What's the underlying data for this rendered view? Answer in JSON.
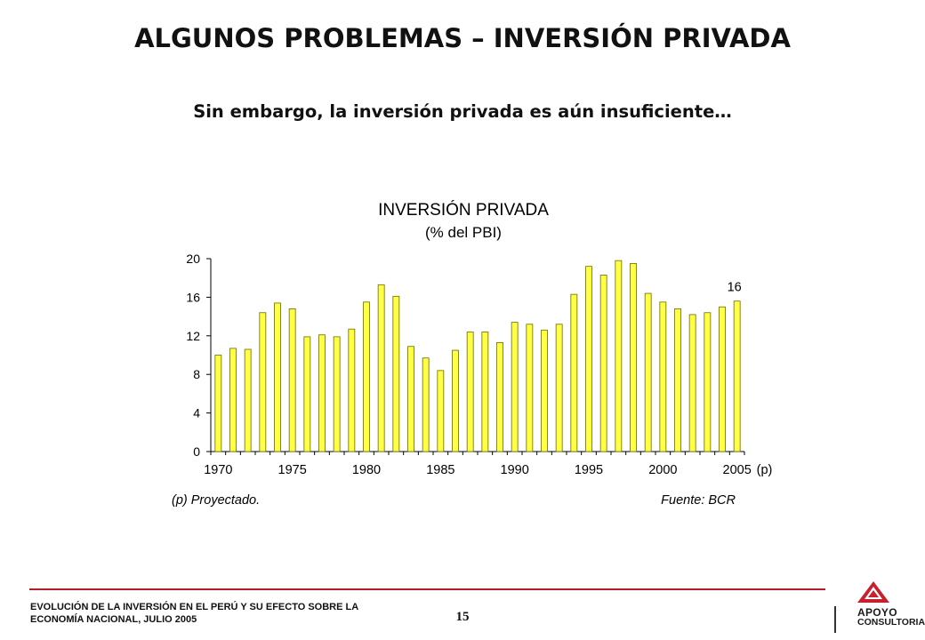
{
  "header": {
    "title": "ALGUNOS PROBLEMAS – INVERSIÓN PRIVADA",
    "subtitle": "Sin embargo, la inversión privada es aún insuficiente…"
  },
  "footer": {
    "line1": "EVOLUCIÓN DE LA INVERSIÓN EN EL PERÚ Y SU EFECTO SOBRE LA",
    "line2": "ECONOMÍA NACIONAL, JULIO 2005",
    "page_number": "15",
    "logo_line1": "APOYO",
    "logo_line2": "CONSULTORIA"
  },
  "colors": {
    "bar_fill": "#ffff44",
    "bar_stroke": "#6b6b00",
    "accent_rule": "#b41e28",
    "logo_red": "#c8202c"
  },
  "chart_data": {
    "type": "bar",
    "title": "INVERSIÓN PRIVADA",
    "subtitle": "(% del PBI)",
    "x": [
      1970,
      1971,
      1972,
      1973,
      1974,
      1975,
      1976,
      1977,
      1978,
      1979,
      1980,
      1981,
      1982,
      1983,
      1984,
      1985,
      1986,
      1987,
      1988,
      1989,
      1990,
      1991,
      1992,
      1993,
      1994,
      1995,
      1996,
      1997,
      1998,
      1999,
      2000,
      2001,
      2002,
      2003,
      2004,
      2005
    ],
    "values": [
      10.0,
      10.7,
      10.6,
      14.4,
      15.4,
      14.8,
      11.9,
      12.1,
      11.9,
      12.7,
      15.5,
      17.3,
      16.1,
      10.9,
      9.7,
      8.4,
      10.5,
      12.4,
      12.4,
      11.3,
      13.4,
      13.2,
      12.6,
      13.2,
      16.3,
      19.2,
      18.3,
      19.8,
      19.5,
      16.4,
      15.5,
      14.8,
      14.2,
      14.4,
      15.0,
      15.6
    ],
    "ylim": [
      0,
      20
    ],
    "yticks": [
      0,
      4,
      8,
      12,
      16,
      20
    ],
    "xtick_labels": [
      "1970",
      "1975",
      "1980",
      "1985",
      "1990",
      "1995",
      "2000",
      "2005"
    ],
    "xtick_suffix": "(p)",
    "data_label": {
      "category": 2005,
      "text": "16"
    },
    "notes": {
      "left": "(p) Proyectado.",
      "right": "Fuente: BCR"
    },
    "grid": false,
    "legend": "none"
  }
}
